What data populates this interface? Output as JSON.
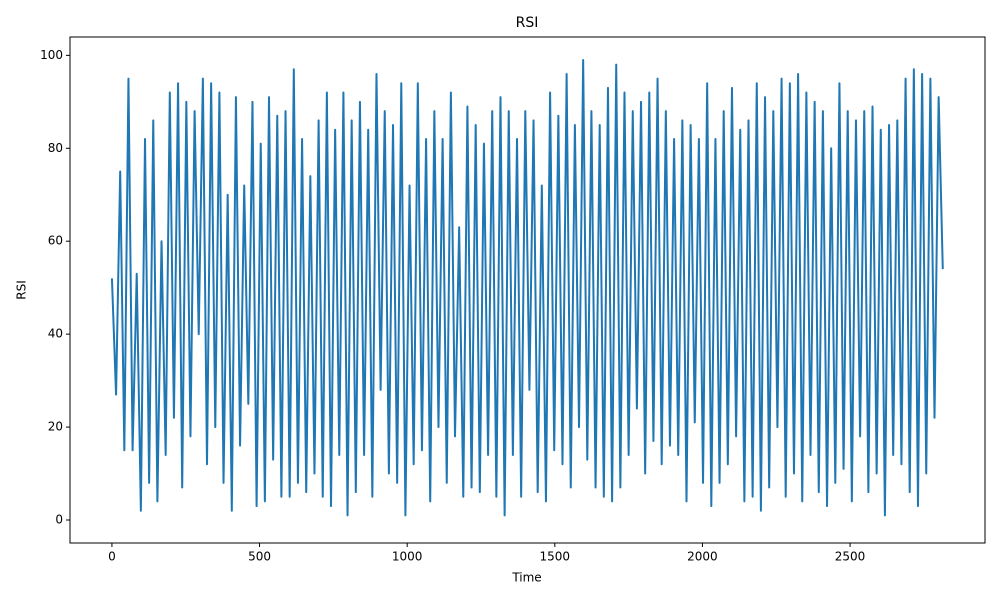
{
  "chart_data": {
    "type": "line",
    "title": "RSI",
    "x_label": "Time",
    "y_label": "RSI",
    "x": [
      0,
      14,
      28,
      42,
      56,
      70,
      84,
      98,
      112,
      126,
      140,
      154,
      168,
      182,
      196,
      210,
      224,
      238,
      252,
      266,
      280,
      294,
      308,
      322,
      336,
      350,
      364,
      378,
      392,
      406,
      420,
      434,
      448,
      462,
      476,
      490,
      504,
      518,
      532,
      546,
      560,
      574,
      588,
      602,
      616,
      630,
      644,
      658,
      672,
      686,
      700,
      714,
      728,
      742,
      756,
      770,
      784,
      798,
      812,
      826,
      840,
      854,
      868,
      882,
      896,
      910,
      924,
      938,
      952,
      966,
      980,
      994,
      1008,
      1022,
      1036,
      1050,
      1064,
      1078,
      1092,
      1106,
      1120,
      1134,
      1148,
      1162,
      1176,
      1190,
      1204,
      1218,
      1232,
      1246,
      1260,
      1274,
      1288,
      1302,
      1316,
      1330,
      1344,
      1358,
      1372,
      1386,
      1400,
      1414,
      1428,
      1442,
      1456,
      1470,
      1484,
      1498,
      1512,
      1526,
      1540,
      1554,
      1568,
      1582,
      1596,
      1610,
      1624,
      1638,
      1652,
      1666,
      1680,
      1694,
      1708,
      1722,
      1736,
      1750,
      1764,
      1778,
      1792,
      1806,
      1820,
      1834,
      1848,
      1862,
      1876,
      1890,
      1904,
      1918,
      1932,
      1946,
      1960,
      1974,
      1988,
      2002,
      2016,
      2030,
      2044,
      2058,
      2072,
      2086,
      2100,
      2114,
      2128,
      2142,
      2156,
      2170,
      2184,
      2198,
      2212,
      2226,
      2240,
      2254,
      2268,
      2282,
      2296,
      2310,
      2324,
      2338,
      2352,
      2366,
      2380,
      2394,
      2408,
      2422,
      2436,
      2450,
      2464,
      2478,
      2492,
      2506,
      2520,
      2534,
      2548,
      2562,
      2576,
      2590,
      2604,
      2618,
      2632,
      2646,
      2660,
      2674,
      2688,
      2702,
      2716,
      2730,
      2744,
      2758,
      2772,
      2786,
      2800,
      2814
    ],
    "series": [
      {
        "name": "RSI",
        "color": "#1f77b4",
        "values": [
          52,
          27,
          75,
          15,
          95,
          15,
          53,
          2,
          82,
          8,
          86,
          4,
          60,
          14,
          92,
          22,
          94,
          7,
          90,
          18,
          88,
          40,
          95,
          12,
          94,
          20,
          92,
          8,
          70,
          2,
          91,
          16,
          72,
          25,
          90,
          3,
          81,
          4,
          91,
          13,
          87,
          5,
          88,
          5,
          97,
          8,
          82,
          6,
          74,
          10,
          86,
          5,
          92,
          3,
          84,
          14,
          92,
          1,
          86,
          6,
          90,
          14,
          84,
          5,
          96,
          28,
          88,
          10,
          85,
          8,
          94,
          1,
          72,
          12,
          94,
          15,
          82,
          4,
          88,
          20,
          82,
          8,
          92,
          18,
          63,
          5,
          89,
          7,
          85,
          6,
          81,
          14,
          88,
          5,
          91,
          1,
          88,
          14,
          82,
          5,
          88,
          28,
          86,
          6,
          72,
          4,
          92,
          15,
          87,
          12,
          96,
          7,
          85,
          20,
          99,
          13,
          88,
          7,
          85,
          5,
          93,
          4,
          98,
          7,
          92,
          14,
          88,
          24,
          90,
          10,
          92,
          17,
          95,
          12,
          88,
          16,
          82,
          14,
          86,
          4,
          85,
          21,
          82,
          8,
          94,
          3,
          82,
          8,
          88,
          12,
          93,
          18,
          84,
          4,
          86,
          5,
          94,
          2,
          91,
          7,
          88,
          20,
          95,
          5,
          94,
          10,
          96,
          4,
          92,
          14,
          90,
          6,
          88,
          3,
          80,
          8,
          94,
          11,
          88,
          4,
          86,
          18,
          88,
          6,
          89,
          10,
          84,
          1,
          85,
          14,
          86,
          12,
          95,
          6,
          97,
          3,
          96,
          10,
          95,
          22,
          91,
          54
        ]
      }
    ],
    "xlim": [
      -142,
      2957
    ],
    "xticks": [
      0,
      500,
      1000,
      1500,
      2000,
      2500
    ],
    "ylim": [
      -4.95,
      103.95
    ],
    "yticks": [
      0,
      20,
      40,
      60,
      80,
      100
    ],
    "grid": false
  }
}
